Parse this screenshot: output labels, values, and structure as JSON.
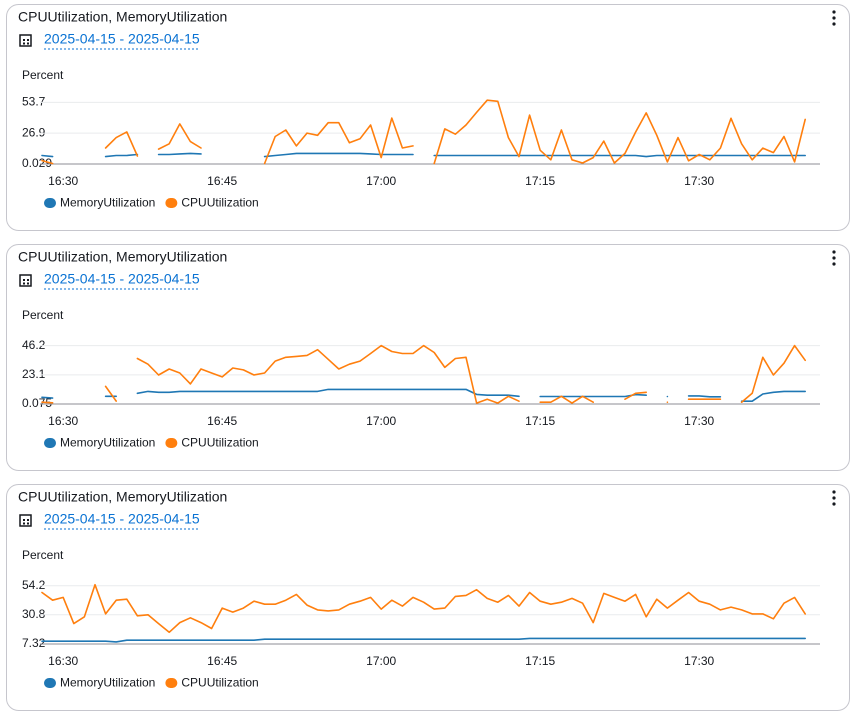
{
  "chart_data": [
    {
      "type": "line",
      "title": "CPUUtilization, MemoryUtilization",
      "subtitle": "2025-04-15 - 2025-04-15",
      "ylabel": "Percent",
      "categories": [
        null,
        null,
        "16:30",
        null,
        null,
        null,
        null,
        null,
        null,
        null,
        null,
        null,
        null,
        null,
        null,
        null,
        null,
        "16:45",
        null,
        null,
        null,
        null,
        null,
        null,
        null,
        null,
        null,
        null,
        null,
        null,
        null,
        null,
        "17:00",
        null,
        null,
        null,
        null,
        null,
        null,
        null,
        null,
        null,
        null,
        null,
        null,
        null,
        null,
        "17:15",
        null,
        null,
        null,
        null,
        null,
        null,
        null,
        null,
        null,
        null,
        null,
        null,
        null,
        null,
        "17:30",
        null,
        null,
        null,
        null,
        null,
        null,
        null,
        null,
        null,
        null
      ],
      "ylim": [
        0.029,
        61
      ],
      "yticks": [
        0.029,
        26.9,
        53.7
      ],
      "grid": true,
      "legend": "bottom",
      "series": [
        {
          "name": "MemoryUtilization",
          "color": "#1f77b4",
          "values": [
            7.4,
            6.5,
            null,
            null,
            null,
            null,
            6.5,
            7.4,
            7.4,
            8.3,
            null,
            8.3,
            8.3,
            8.8,
            9.3,
            8.8,
            null,
            null,
            null,
            null,
            null,
            6.5,
            7.4,
            8.3,
            9.3,
            9.3,
            9.3,
            9.3,
            9.3,
            9.3,
            9.3,
            8.8,
            8.3,
            8.3,
            8.3,
            8.3,
            null,
            7.4,
            7.4,
            7.4,
            7.4,
            7.4,
            7.4,
            7.4,
            7.4,
            7.4,
            7.4,
            7.4,
            7.4,
            7.4,
            7.4,
            7.4,
            7.4,
            7.4,
            7.4,
            7.4,
            7.4,
            6.5,
            7.4,
            7.4,
            7.4,
            7.4,
            7.4,
            7.4,
            7.4,
            7.4,
            7.4,
            7.4,
            7.4,
            7.4,
            7.4,
            7.4,
            7.4
          ]
        },
        {
          "name": "CPUUtilization",
          "color": "#ff7f0e",
          "values": [
            3,
            0.5,
            null,
            null,
            null,
            null,
            14,
            23,
            28,
            7,
            null,
            13,
            17.6,
            35,
            19.5,
            14,
            null,
            null,
            null,
            null,
            null,
            0.5,
            24,
            29.6,
            15.8,
            26.9,
            25,
            36,
            36,
            18.5,
            22,
            34,
            5.6,
            40,
            14,
            15.8,
            null,
            0.5,
            30.6,
            26,
            34,
            45,
            55.6,
            54.6,
            23,
            6.5,
            42.6,
            12,
            3.7,
            29.6,
            3.7,
            0.9,
            5.6,
            20,
            0.9,
            9.3,
            27.8,
            44.5,
            25,
            1.9,
            23,
            2.8,
            8.3,
            3.7,
            13.9,
            39.8,
            17.6,
            3.7,
            13.9,
            10,
            24,
            1.9,
            38.9
          ]
        }
      ]
    },
    {
      "type": "line",
      "title": "CPUUtilization, MemoryUtilization",
      "subtitle": "2025-04-15 - 2025-04-15",
      "ylabel": "Percent",
      "categories": [
        null,
        null,
        "16:30",
        null,
        null,
        null,
        null,
        null,
        null,
        null,
        null,
        null,
        null,
        null,
        null,
        null,
        null,
        "16:45",
        null,
        null,
        null,
        null,
        null,
        null,
        null,
        null,
        null,
        null,
        null,
        null,
        null,
        null,
        "17:00",
        null,
        null,
        null,
        null,
        null,
        null,
        null,
        null,
        null,
        null,
        null,
        null,
        null,
        null,
        "17:15",
        null,
        null,
        null,
        null,
        null,
        null,
        null,
        null,
        null,
        null,
        null,
        null,
        null,
        null,
        "17:30",
        null,
        null,
        null,
        null,
        null,
        null,
        null,
        null,
        null,
        null
      ],
      "ylim": [
        0.075,
        55.4
      ],
      "yticks": [
        0.075,
        23.1,
        46.2
      ],
      "grid": true,
      "legend": "bottom",
      "series": [
        {
          "name": "MemoryUtilization",
          "color": "#1f77b4",
          "values": [
            5.4,
            4.7,
            null,
            null,
            null,
            null,
            6.2,
            6.2,
            null,
            8.5,
            10,
            9.3,
            9.3,
            10,
            10,
            10,
            10,
            10,
            10,
            10,
            10,
            10,
            10,
            10,
            10,
            10,
            10,
            11.6,
            11.6,
            11.6,
            11.6,
            11.6,
            11.6,
            11.6,
            11.6,
            11.6,
            11.6,
            11.6,
            11.6,
            11.6,
            11.6,
            7.7,
            7,
            7,
            7,
            6.2,
            null,
            6,
            6,
            6,
            6,
            6,
            6,
            6,
            6,
            6,
            7.5,
            7,
            null,
            6,
            null,
            6.5,
            6.5,
            5.8,
            5.8,
            null,
            2.3,
            2.3,
            8,
            9.3,
            10,
            10,
            10
          ]
        },
        {
          "name": "CPUUtilization",
          "color": "#ff7f0e",
          "values": [
            1.5,
            1,
            null,
            null,
            null,
            null,
            14,
            2.4,
            null,
            36,
            31.5,
            23,
            27.7,
            24.6,
            16,
            27.7,
            24.6,
            21.5,
            28.5,
            27,
            23,
            24.6,
            34,
            37,
            37.7,
            38.5,
            43,
            35.4,
            27.7,
            31.5,
            34,
            40,
            46.2,
            41.6,
            40,
            40,
            46.2,
            40.8,
            29,
            36,
            37,
            0.8,
            3.9,
            0.8,
            6.2,
            2.3,
            null,
            1.5,
            1.5,
            6.2,
            0.8,
            6.2,
            1.5,
            null,
            null,
            3.9,
            8.5,
            9.3,
            null,
            1.5,
            null,
            3.9,
            3.9,
            3.9,
            3.9,
            null,
            1.5,
            8.5,
            37,
            23,
            32.3,
            46.2,
            34.6
          ]
        }
      ]
    },
    {
      "type": "line",
      "title": "CPUUtilization, MemoryUtilization",
      "subtitle": "2025-04-15 - 2025-04-15",
      "ylabel": "Percent",
      "categories": [
        null,
        null,
        "16:30",
        null,
        null,
        null,
        null,
        null,
        null,
        null,
        null,
        null,
        null,
        null,
        null,
        null,
        null,
        "16:45",
        null,
        null,
        null,
        null,
        null,
        null,
        null,
        null,
        null,
        null,
        null,
        null,
        null,
        null,
        "17:00",
        null,
        null,
        null,
        null,
        null,
        null,
        null,
        null,
        null,
        null,
        null,
        null,
        null,
        null,
        "17:15",
        null,
        null,
        null,
        null,
        null,
        null,
        null,
        null,
        null,
        null,
        null,
        null,
        null,
        null,
        "17:30",
        null,
        null,
        null,
        null,
        null,
        null,
        null,
        null,
        null,
        null
      ],
      "ylim": [
        7.32,
        63.6
      ],
      "yticks": [
        7.32,
        30.8,
        54.2
      ],
      "grid": true,
      "legend": "bottom",
      "series": [
        {
          "name": "MemoryUtilization",
          "color": "#1f77b4",
          "values": [
            9.6,
            9.6,
            9.6,
            9.6,
            9.6,
            9.6,
            9.6,
            9,
            10.4,
            10.4,
            10.4,
            10.4,
            10.4,
            10.4,
            10.4,
            10.4,
            10.4,
            10.4,
            10.4,
            10.4,
            10.4,
            11.2,
            11.2,
            11.2,
            11.2,
            11.2,
            11.2,
            11.2,
            11.2,
            11.2,
            11.2,
            11.2,
            11.2,
            11.2,
            11.2,
            11.2,
            11.2,
            11.2,
            11.2,
            11.2,
            11.2,
            11.2,
            11.2,
            11.2,
            11.2,
            11.2,
            11.8,
            11.8,
            11.8,
            11.8,
            11.8,
            11.8,
            11.8,
            11.8,
            11.8,
            11.8,
            11.8,
            11.8,
            11.8,
            11.8,
            11.8,
            11.8,
            11.8,
            11.8,
            11.8,
            11.8,
            11.8,
            11.8,
            11.8,
            11.8,
            11.8,
            11.8,
            11.8
          ]
        },
        {
          "name": "CPUUtilization",
          "color": "#ff7f0e",
          "values": [
            48.7,
            42.5,
            44.8,
            23.7,
            29.2,
            55,
            31.5,
            42.5,
            43.3,
            30,
            30.8,
            23.7,
            16.7,
            24.5,
            28.4,
            24.5,
            19.8,
            36.2,
            33,
            36.2,
            41.7,
            39.3,
            39.3,
            42.5,
            47.2,
            38.6,
            34.7,
            33.9,
            34.7,
            39.3,
            41.7,
            44.8,
            35.4,
            42.5,
            37.8,
            44.8,
            40.9,
            35.4,
            36.2,
            45.6,
            46.4,
            51,
            44,
            40.9,
            46.4,
            37.8,
            48.7,
            41.7,
            39.3,
            40.9,
            44,
            40.1,
            24.5,
            48,
            44.8,
            41.7,
            47.2,
            29.2,
            43.3,
            36.2,
            42.5,
            48.7,
            41.7,
            39.3,
            34.7,
            37,
            34.7,
            31.5,
            31.5,
            27.6,
            40.1,
            44.8,
            31.5
          ]
        }
      ]
    }
  ]
}
